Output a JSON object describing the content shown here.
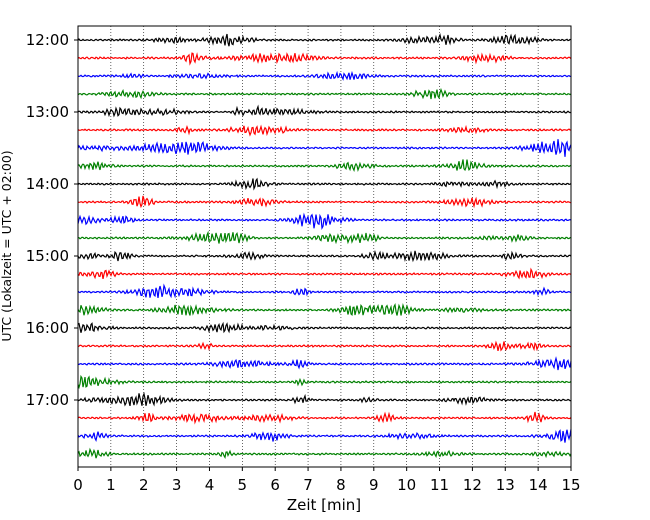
{
  "chart_data": {
    "type": "line",
    "title": "",
    "xlabel": "Zeit  [min]",
    "ylabel": "UTC (Lokalzeit = UTC + 02:00)",
    "xlim": [
      0,
      15
    ],
    "x_ticks": [
      "0",
      "1",
      "2",
      "3",
      "4",
      "5",
      "6",
      "7",
      "8",
      "9",
      "10",
      "11",
      "12",
      "13",
      "14",
      "15"
    ],
    "y_ticks": [
      "12:00",
      "13:00",
      "14:00",
      "15:00",
      "16:00",
      "17:00"
    ],
    "grid": "vertical dotted",
    "trace_colors": [
      "#000000",
      "#ff0000",
      "#0000ff",
      "#008000"
    ],
    "trace_start_times": [
      "12:00",
      "12:15",
      "12:30",
      "12:45",
      "13:00",
      "13:15",
      "13:30",
      "13:45",
      "14:00",
      "14:15",
      "14:30",
      "14:45",
      "15:00",
      "15:15",
      "15:30",
      "15:45",
      "16:00",
      "16:15",
      "16:30",
      "16:45",
      "17:00",
      "17:15",
      "17:30",
      "17:45"
    ],
    "trace_minutes_per_line": 15
  }
}
